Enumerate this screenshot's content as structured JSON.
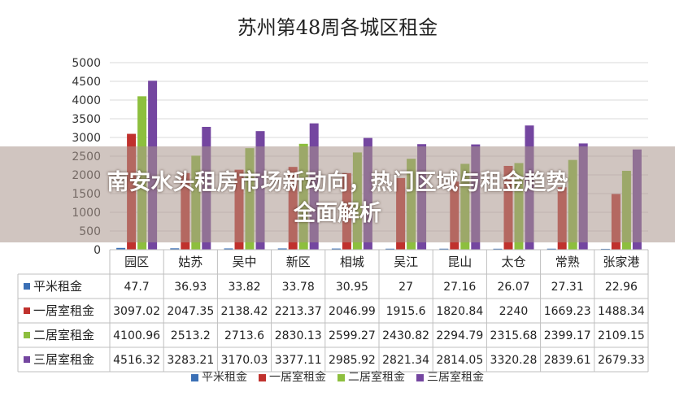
{
  "header": {
    "title": "苏州第48周各城区租金"
  },
  "banner": {
    "line1": "南安水头租房市场新动向，热门区域与租金趋势",
    "line2": "全面解析"
  },
  "colors": {
    "平米租金": "#3a6fb5",
    "一居室租金": "#c0312d",
    "二居室租金": "#8dbf3e",
    "三居室租金": "#7446a0"
  },
  "chart_data": {
    "type": "bar",
    "title": "苏州第48周各城区租金",
    "categories": [
      "园区",
      "姑苏",
      "吴中",
      "新区",
      "相城",
      "吴江",
      "昆山",
      "太仓",
      "常熟",
      "张家港"
    ],
    "ylim": [
      0,
      5000
    ],
    "yticks": [
      "0",
      "500",
      "1000",
      "1500",
      "2000",
      "2500",
      "3000",
      "3500",
      "4000",
      "4500",
      "5000"
    ],
    "grid": true,
    "legend_position": "bottom",
    "series": [
      {
        "name": "平米租金",
        "values": [
          47.7,
          36.93,
          33.82,
          33.78,
          30.95,
          27,
          27.16,
          26.07,
          27.31,
          22.96
        ],
        "labels": [
          "47.7",
          "36.93",
          "33.82",
          "33.78",
          "30.95",
          "27",
          "27.16",
          "26.07",
          "27.31",
          "22.96"
        ]
      },
      {
        "name": "一居室租金",
        "values": [
          3097.02,
          2047.35,
          2138.42,
          2213.37,
          2046.99,
          1915.6,
          1820.84,
          2240,
          1669.23,
          1488.34
        ],
        "labels": [
          "3097.02",
          "2047.35",
          "2138.42",
          "2213.37",
          "2046.99",
          "1915.6",
          "1820.84",
          "2240",
          "1669.23",
          "1488.34"
        ]
      },
      {
        "name": "二居室租金",
        "values": [
          4100.96,
          2513.2,
          2713.6,
          2830.13,
          2599.27,
          2430.82,
          2294.79,
          2315.68,
          2399.17,
          2109.15
        ],
        "labels": [
          "4100.96",
          "2513.2",
          "2713.6",
          "2830.13",
          "2599.27",
          "2430.82",
          "2294.79",
          "2315.68",
          "2399.17",
          "2109.15"
        ]
      },
      {
        "name": "三居室租金",
        "values": [
          4516.32,
          3283.21,
          3170.03,
          3377.11,
          2985.92,
          2821.34,
          2814.05,
          3320.28,
          2839.61,
          2679.33
        ],
        "labels": [
          "4516.32",
          "3283.21",
          "3170.03",
          "3377.11",
          "2985.92",
          "2821.34",
          "2814.05",
          "3320.28",
          "2839.61",
          "2679.33"
        ]
      }
    ]
  }
}
